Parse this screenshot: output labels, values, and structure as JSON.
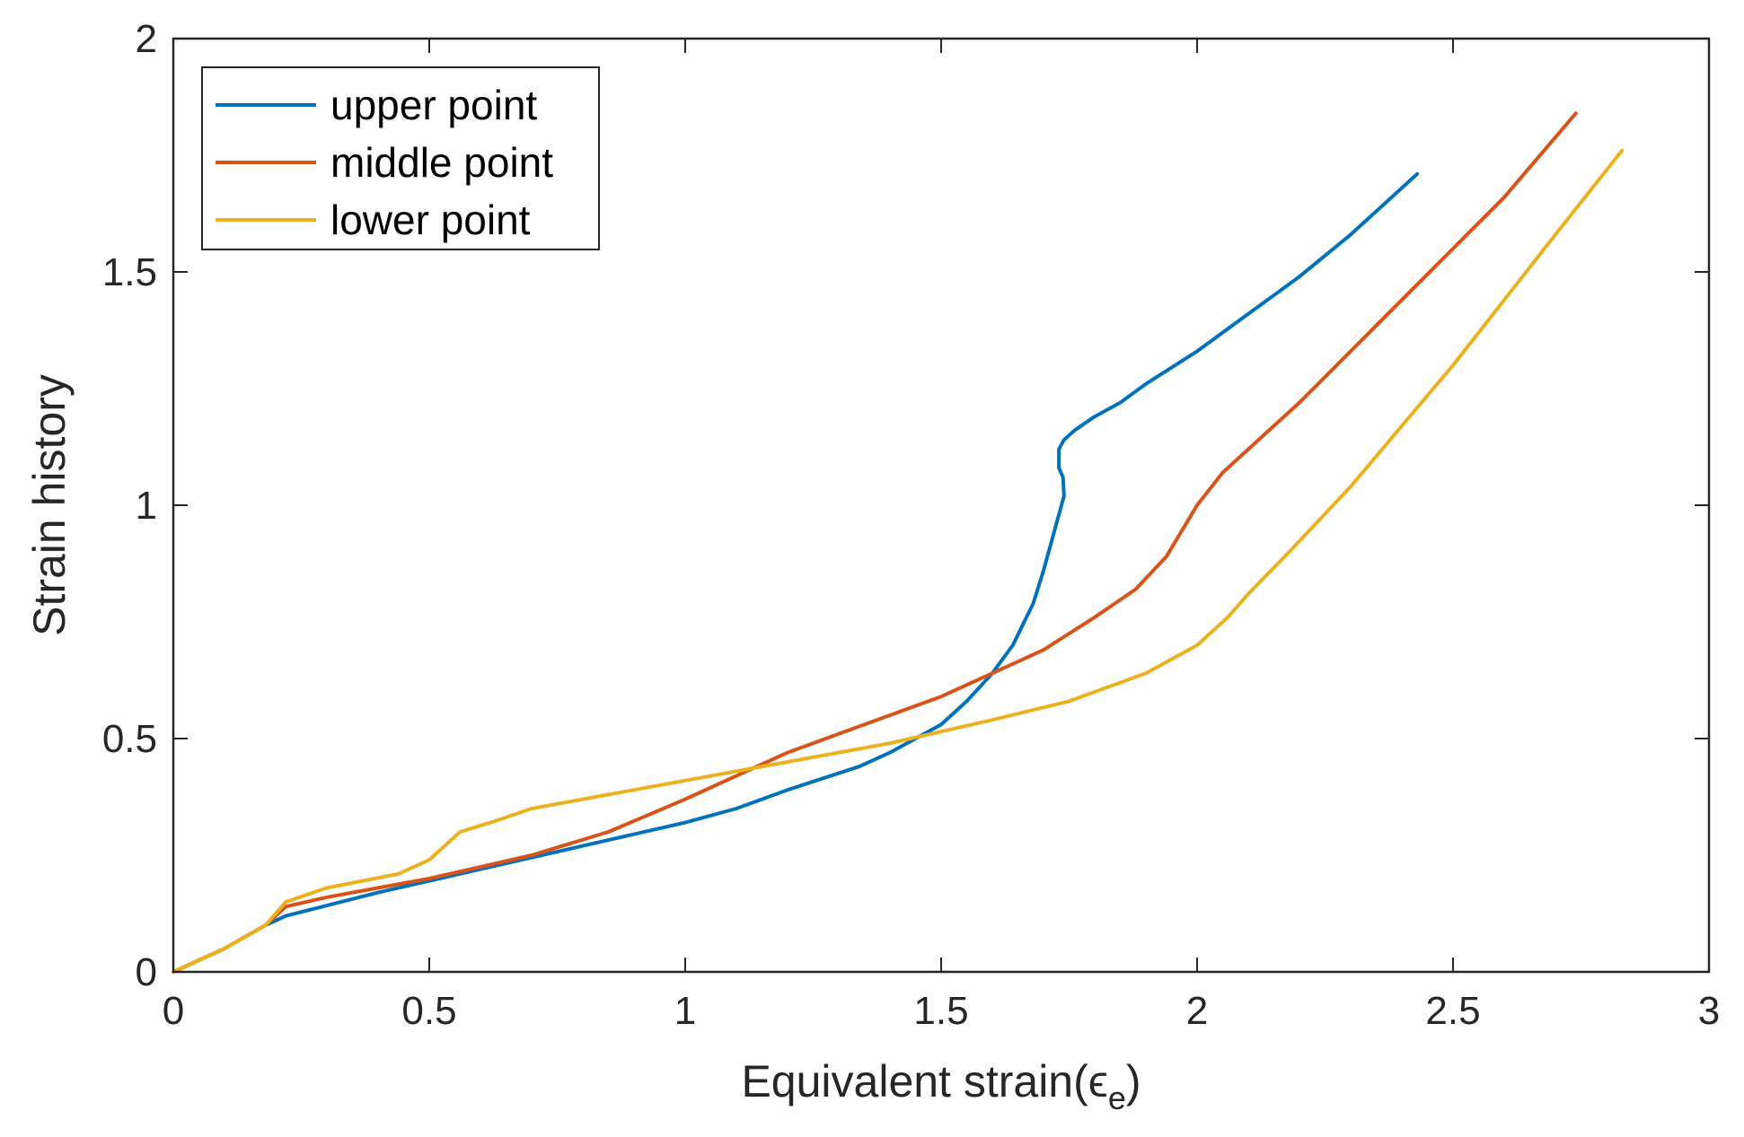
{
  "chart_data": {
    "type": "line",
    "title": "",
    "xlabel": "Equivalent strain(ϵ",
    "xlabel_sub": "e",
    "xlabel_close": ")",
    "ylabel": "Strain history",
    "xlim": [
      0,
      3
    ],
    "ylim": [
      0,
      2
    ],
    "xticks": [
      0,
      0.5,
      1,
      1.5,
      2,
      2.5,
      3
    ],
    "yticks": [
      0,
      0.5,
      1,
      1.5,
      2
    ],
    "xtick_labels": [
      "0",
      "0.5",
      "1",
      "1.5",
      "2",
      "2.5",
      "3"
    ],
    "ytick_labels": [
      "0",
      "0.5",
      "1",
      "1.5",
      "2"
    ],
    "grid": false,
    "legend_position": "top-left",
    "series": [
      {
        "name": "upper point",
        "color": "#0072BD",
        "x": [
          0,
          0.1,
          0.18,
          0.22,
          0.4,
          0.6,
          0.8,
          1.0,
          1.1,
          1.2,
          1.34,
          1.4,
          1.45,
          1.5,
          1.55,
          1.6,
          1.64,
          1.68,
          1.7,
          1.72,
          1.735,
          1.74,
          1.738,
          1.73,
          1.73,
          1.74,
          1.76,
          1.8,
          1.85,
          1.9,
          2.0,
          2.1,
          2.2,
          2.3,
          2.43
        ],
        "y": [
          0,
          0.05,
          0.1,
          0.12,
          0.17,
          0.22,
          0.27,
          0.32,
          0.35,
          0.39,
          0.44,
          0.47,
          0.5,
          0.53,
          0.58,
          0.64,
          0.7,
          0.79,
          0.86,
          0.94,
          1.0,
          1.02,
          1.06,
          1.08,
          1.12,
          1.14,
          1.16,
          1.19,
          1.22,
          1.26,
          1.33,
          1.41,
          1.49,
          1.58,
          1.71
        ]
      },
      {
        "name": "middle point",
        "color": "#D95319",
        "x": [
          0,
          0.1,
          0.18,
          0.22,
          0.3,
          0.5,
          0.7,
          0.85,
          1.0,
          1.1,
          1.2,
          1.3,
          1.4,
          1.5,
          1.6,
          1.7,
          1.8,
          1.88,
          1.94,
          2.0,
          2.05,
          2.1,
          2.2,
          2.3,
          2.4,
          2.5,
          2.6,
          2.74
        ],
        "y": [
          0,
          0.05,
          0.1,
          0.14,
          0.16,
          0.2,
          0.25,
          0.3,
          0.37,
          0.42,
          0.47,
          0.51,
          0.55,
          0.59,
          0.64,
          0.69,
          0.76,
          0.82,
          0.89,
          1.0,
          1.07,
          1.12,
          1.22,
          1.33,
          1.44,
          1.55,
          1.66,
          1.84
        ]
      },
      {
        "name": "lower point",
        "color": "#EDB120",
        "x": [
          0,
          0.1,
          0.18,
          0.22,
          0.3,
          0.44,
          0.5,
          0.56,
          0.62,
          0.7,
          0.8,
          0.9,
          1.0,
          1.2,
          1.4,
          1.6,
          1.75,
          1.9,
          2.0,
          2.06,
          2.1,
          2.18,
          2.3,
          2.4,
          2.5,
          2.6,
          2.7,
          2.83
        ],
        "y": [
          0,
          0.05,
          0.1,
          0.15,
          0.18,
          0.21,
          0.24,
          0.3,
          0.32,
          0.35,
          0.37,
          0.39,
          0.41,
          0.45,
          0.49,
          0.54,
          0.58,
          0.64,
          0.7,
          0.76,
          0.81,
          0.9,
          1.04,
          1.17,
          1.3,
          1.44,
          1.58,
          1.76
        ]
      }
    ]
  }
}
